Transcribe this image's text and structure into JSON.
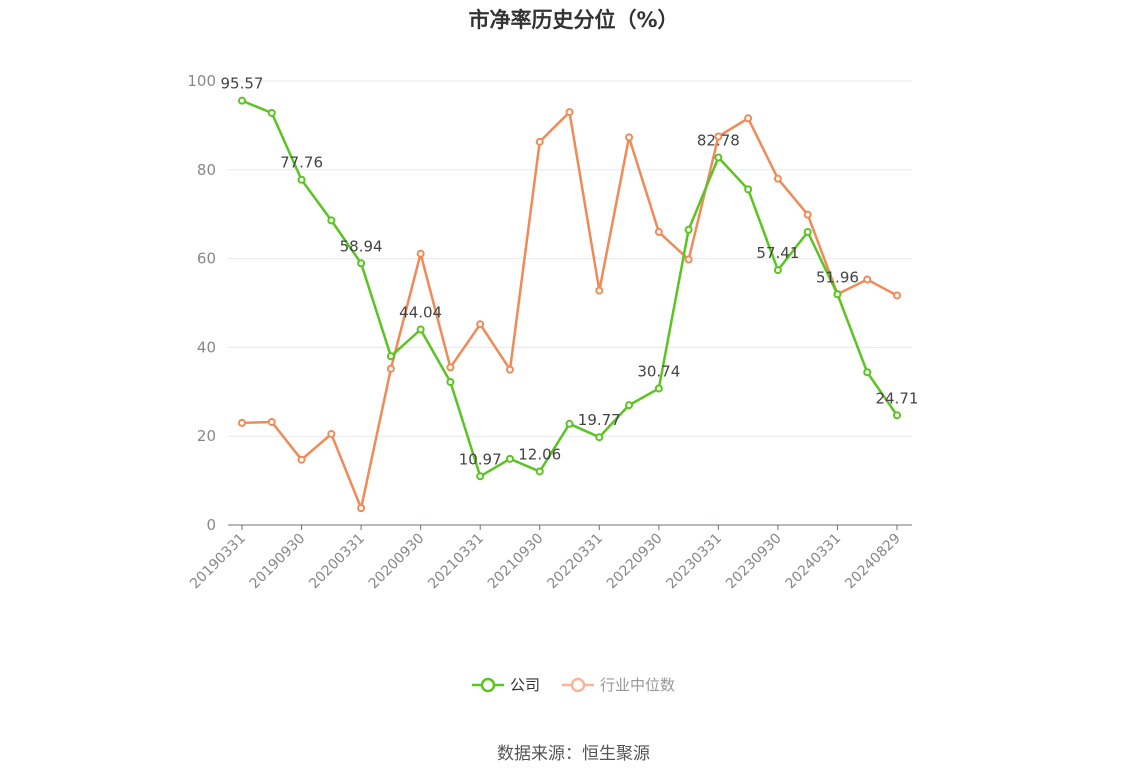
{
  "title": "市净率历史分位（%）",
  "source": "数据来源：恒生聚源",
  "colors": {
    "company": "#5ac421",
    "industry": "#f08a57",
    "axis": "#6e7079",
    "grid": "#e6e8ee",
    "label": "#444444"
  },
  "legend": [
    {
      "label": "公司",
      "icon": "circle-line-icon",
      "color": "#5ac421",
      "active": true
    },
    {
      "label": "行业中位数",
      "icon": "circle-line-icon",
      "color": "#f8b699",
      "active": false
    }
  ],
  "chart_data": {
    "type": "line",
    "title": "市净率历史分位（%）",
    "x": [
      "20190331",
      "20190630",
      "20190930",
      "20191231",
      "20200331",
      "20200630",
      "20200930",
      "20201231",
      "20210331",
      "20210630",
      "20210930",
      "20211231",
      "20220331",
      "20220630",
      "20220930",
      "20221231",
      "20230331",
      "20230630",
      "20230930",
      "20231231",
      "20240331",
      "20240630",
      "20240829"
    ],
    "x_tick_labels": [
      "20190331",
      "20190930",
      "20200331",
      "20200930",
      "20210331",
      "20210930",
      "20220331",
      "20220930",
      "20230331",
      "20230930",
      "20240331",
      "20240829"
    ],
    "ylim": [
      0,
      100
    ],
    "y_ticks": [
      0,
      20,
      40,
      60,
      80,
      100
    ],
    "grid": true,
    "legend_position": "bottom",
    "series": [
      {
        "name": "公司",
        "values": [
          95.57,
          92.8,
          77.76,
          68.6,
          58.94,
          38.0,
          44.04,
          32.2,
          10.97,
          14.9,
          12.06,
          22.8,
          19.77,
          27.0,
          30.74,
          66.5,
          82.78,
          75.6,
          57.41,
          66.0,
          51.96,
          34.4,
          24.71
        ]
      },
      {
        "name": "行业中位数",
        "values": [
          23.0,
          23.2,
          14.7,
          20.5,
          3.8,
          35.2,
          61.1,
          35.5,
          45.2,
          35.0,
          86.3,
          93.0,
          52.8,
          87.3,
          66.0,
          59.8,
          87.5,
          91.6,
          78.0,
          69.9,
          52.0,
          55.3,
          51.7
        ]
      }
    ],
    "data_labels": [
      {
        "series": 0,
        "index": 0,
        "text": "95.57"
      },
      {
        "series": 0,
        "index": 2,
        "text": "77.76"
      },
      {
        "series": 0,
        "index": 4,
        "text": "58.94"
      },
      {
        "series": 0,
        "index": 6,
        "text": "44.04"
      },
      {
        "series": 0,
        "index": 8,
        "text": "10.97"
      },
      {
        "series": 0,
        "index": 10,
        "text": "12.06"
      },
      {
        "series": 0,
        "index": 12,
        "text": "19.77"
      },
      {
        "series": 0,
        "index": 14,
        "text": "30.74"
      },
      {
        "series": 0,
        "index": 16,
        "text": "82.78"
      },
      {
        "series": 0,
        "index": 18,
        "text": "57.41"
      },
      {
        "series": 0,
        "index": 20,
        "text": "51.96"
      },
      {
        "series": 0,
        "index": 22,
        "text": "24.71"
      }
    ]
  }
}
